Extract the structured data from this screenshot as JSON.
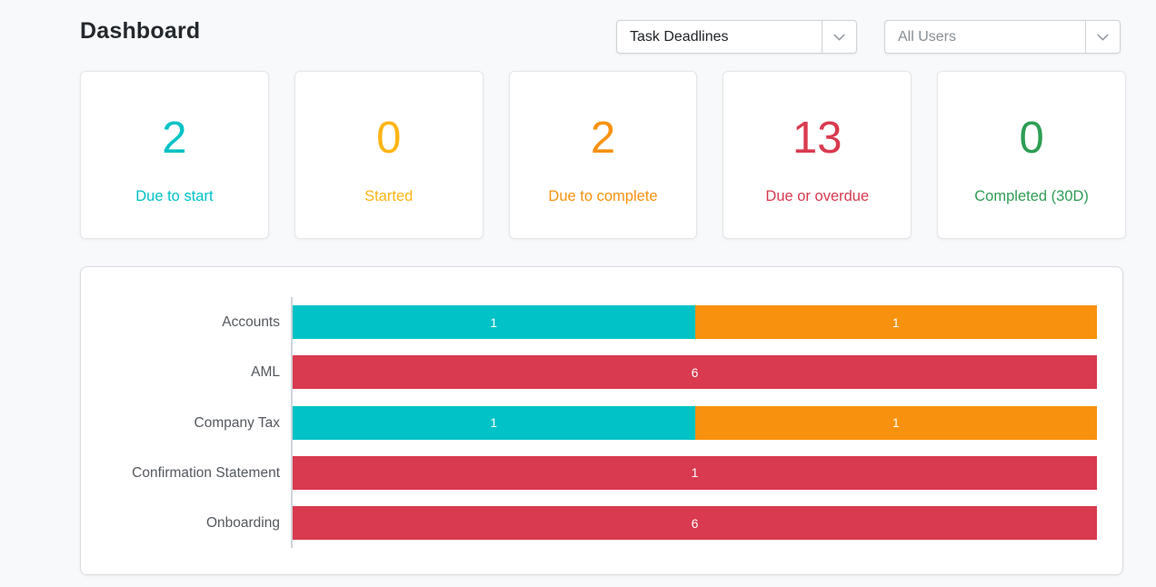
{
  "page": {
    "title": "Dashboard",
    "background_color": "#f8f9fa"
  },
  "filters": {
    "report_select": {
      "value": "Task Deadlines",
      "icon": "chevron-down"
    },
    "user_select": {
      "value": "All Users",
      "icon": "chevron-down"
    }
  },
  "stat_cards": [
    {
      "value": "2",
      "label": "Due to start",
      "color": "#00c2c7"
    },
    {
      "value": "0",
      "label": "Started",
      "color": "#fdb515"
    },
    {
      "value": "2",
      "label": "Due to complete",
      "color": "#f8910d"
    },
    {
      "value": "13",
      "label": "Due or overdue",
      "color": "#d93a4f"
    },
    {
      "value": "0",
      "label": "Completed (30D)",
      "color": "#2e9e54"
    }
  ],
  "chart_data": {
    "type": "bar",
    "orientation": "horizontal",
    "stacked": true,
    "normalized": true,
    "grid": false,
    "legend": "none",
    "categories": [
      "Accounts",
      "AML",
      "Company Tax",
      "Confirmation Statement",
      "Onboarding"
    ],
    "series": [
      {
        "name": "Due to start",
        "color": "#00c2c7",
        "values": [
          1,
          0,
          1,
          0,
          0
        ]
      },
      {
        "name": "Due to complete",
        "color": "#f8910d",
        "values": [
          1,
          0,
          1,
          0,
          0
        ]
      },
      {
        "name": "Due or overdue",
        "color": "#d93a4f",
        "values": [
          0,
          6,
          0,
          1,
          6
        ]
      }
    ],
    "value_label_color": "#ffffff",
    "axis_color": "#cfd3d7"
  }
}
